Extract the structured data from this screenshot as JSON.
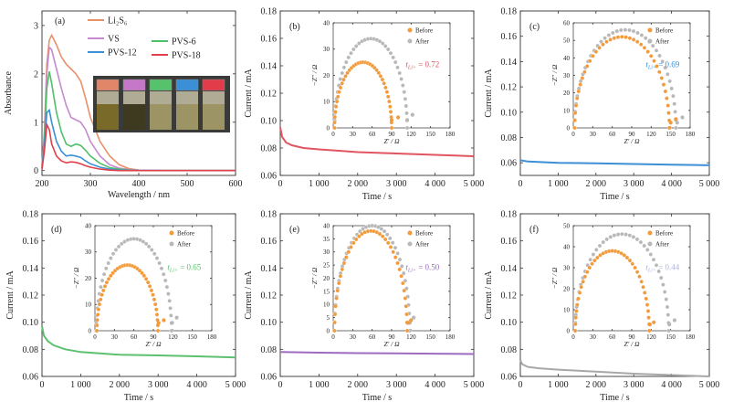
{
  "chart_data": [
    {
      "type": "line",
      "panel_label": "(a)",
      "xlabel": "Wavelength / nm",
      "ylabel": "Absorbance",
      "xlim": [
        200,
        600
      ],
      "ylim": [
        -0.1,
        3.3
      ],
      "xticks": [
        200,
        300,
        400,
        500,
        600
      ],
      "yticks": [
        0,
        1,
        2,
        3
      ],
      "legend": [
        "Li₂S₆",
        "VS",
        "PVS-12",
        "PVS-6",
        "PVS-18"
      ],
      "series": [
        {
          "name": "Li₂S₆",
          "color": "#e8906a",
          "x": [
            200,
            205,
            210,
            215,
            220,
            230,
            240,
            250,
            260,
            270,
            280,
            290,
            300,
            320,
            340,
            360,
            380,
            400,
            450,
            500,
            600
          ],
          "y": [
            0.1,
            0.8,
            2.2,
            2.7,
            2.8,
            2.6,
            2.35,
            2.2,
            2.1,
            2.0,
            1.85,
            1.5,
            1.1,
            0.6,
            0.3,
            0.12,
            0.04,
            0.01,
            0,
            0,
            0
          ]
        },
        {
          "name": "VS",
          "color": "#c68ad0",
          "x": [
            200,
            205,
            210,
            215,
            220,
            230,
            240,
            250,
            260,
            270,
            280,
            290,
            300,
            320,
            340,
            360,
            380,
            400,
            450,
            500,
            600
          ],
          "y": [
            0.1,
            0.7,
            2.0,
            2.55,
            2.5,
            2.1,
            1.7,
            1.35,
            1.1,
            1.05,
            1.0,
            0.85,
            0.6,
            0.3,
            0.12,
            0.05,
            0.02,
            0.01,
            0,
            0,
            0
          ]
        },
        {
          "name": "PVS-6",
          "color": "#4fbf6a",
          "x": [
            200,
            205,
            210,
            215,
            220,
            230,
            240,
            250,
            260,
            270,
            280,
            290,
            300,
            320,
            340,
            360,
            380,
            400,
            450,
            500,
            600
          ],
          "y": [
            0.05,
            0.6,
            1.7,
            2.05,
            1.8,
            1.2,
            0.8,
            0.55,
            0.5,
            0.55,
            0.52,
            0.42,
            0.3,
            0.15,
            0.06,
            0.03,
            0.01,
            0,
            0,
            0,
            0
          ]
        },
        {
          "name": "PVS-12",
          "color": "#3d8fd6",
          "x": [
            200,
            205,
            210,
            215,
            220,
            230,
            240,
            250,
            260,
            270,
            280,
            290,
            300,
            320,
            340,
            360,
            380,
            400,
            450,
            500,
            600
          ],
          "y": [
            0.05,
            0.5,
            1.2,
            1.25,
            1.0,
            0.6,
            0.4,
            0.3,
            0.32,
            0.3,
            0.27,
            0.2,
            0.14,
            0.07,
            0.03,
            0.01,
            0,
            0,
            0,
            0,
            0
          ]
        },
        {
          "name": "PVS-18",
          "color": "#e0404a",
          "x": [
            200,
            205,
            210,
            215,
            220,
            230,
            240,
            250,
            260,
            270,
            280,
            290,
            300,
            320,
            340,
            360,
            380,
            400,
            450,
            500,
            600
          ],
          "y": [
            0.03,
            0.4,
            0.95,
            0.85,
            0.55,
            0.3,
            0.2,
            0.16,
            0.18,
            0.17,
            0.14,
            0.1,
            0.07,
            0.03,
            0.01,
            0,
            0,
            0,
            0,
            0,
            0
          ]
        }
      ],
      "inset_vial_caps": [
        "#e2866a",
        "#c577c8",
        "#56c26c",
        "#3b8fd6",
        "#e23b4a"
      ]
    },
    {
      "type": "line",
      "panel_label": "(b)",
      "xlabel": "Time / s",
      "ylabel": "Current / mA",
      "xlim": [
        0,
        5000
      ],
      "ylim": [
        0.06,
        0.18
      ],
      "xticks": [
        0,
        1000,
        2000,
        3000,
        4000,
        5000
      ],
      "xticklabels": [
        "0",
        "1 000",
        "2 000",
        "3 000",
        "4 000",
        "5 000"
      ],
      "yticks": [
        0.06,
        0.08,
        0.1,
        0.12,
        0.14,
        0.16,
        0.18
      ],
      "series": [
        {
          "color": "#e05560",
          "x": [
            0,
            50,
            150,
            300,
            600,
            1000,
            2000,
            3000,
            4000,
            5000
          ],
          "y": [
            0.095,
            0.088,
            0.084,
            0.082,
            0.08,
            0.079,
            0.077,
            0.076,
            0.075,
            0.074
          ]
        }
      ],
      "inset": {
        "xlabel": "Z' / Ω",
        "ylabel": "−Z'' / Ω",
        "xlim": [
          0,
          180
        ],
        "ylim": [
          0,
          40
        ],
        "xticks": [
          0,
          30,
          60,
          90,
          120,
          150,
          180
        ],
        "yticks": [
          0,
          10,
          20,
          30,
          40
        ],
        "legend": [
          "Before",
          "After"
        ],
        "annotation": "t_Li+ = 0.72",
        "ann_main": "t",
        "ann_sub": "Li+",
        "ann_val": " = 0.72",
        "ann_color": "#e05560",
        "before": {
          "cx": 46,
          "r": 44,
          "h": 25,
          "tail": [
            [
              90,
              3
            ],
            [
              100,
              4
            ]
          ]
        },
        "after": {
          "cx": 58,
          "r": 56,
          "h": 34,
          "tail": [
            [
              114,
              3
            ],
            [
              122,
              5
            ]
          ]
        }
      }
    },
    {
      "type": "line",
      "panel_label": "(c)",
      "xlabel": "Time / s",
      "ylabel": "Current / mA",
      "xlim": [
        0,
        5000
      ],
      "ylim": [
        0.05,
        0.18
      ],
      "xticks": [
        0,
        1000,
        2000,
        3000,
        4000,
        5000
      ],
      "xticklabels": [
        "0",
        "1 000",
        "2 000",
        "3 000",
        "4 000",
        "5 000"
      ],
      "yticks": [
        0.06,
        0.08,
        0.1,
        0.12,
        0.14,
        0.16,
        0.18
      ],
      "series": [
        {
          "color": "#3d8fd6",
          "x": [
            0,
            200,
            1000,
            2000,
            3000,
            4000,
            5000
          ],
          "y": [
            0.062,
            0.061,
            0.06,
            0.0595,
            0.059,
            0.0585,
            0.058
          ]
        }
      ],
      "inset": {
        "xlabel": "Z' / Ω",
        "ylabel": "−Z'' / Ω",
        "xlim": [
          0,
          180
        ],
        "ylim": [
          0,
          60
        ],
        "xticks": [
          0,
          30,
          60,
          90,
          120,
          150,
          180
        ],
        "yticks": [
          0,
          10,
          20,
          30,
          40,
          50,
          60
        ],
        "legend": [
          "Before",
          "After"
        ],
        "annotation": "t_Li+ = 0.69",
        "ann_main": "t",
        "ann_sub": "Li+",
        "ann_val": " = 0.69",
        "ann_color": "#3d8fd6",
        "before": {
          "cx": 75,
          "r": 73,
          "h": 52,
          "tail": [
            [
              150,
              3
            ],
            [
              158,
              5
            ]
          ]
        },
        "after": {
          "cx": 80,
          "r": 78,
          "h": 56,
          "tail": [
            [
              160,
              3
            ],
            [
              168,
              6
            ]
          ]
        }
      }
    },
    {
      "type": "line",
      "panel_label": "(d)",
      "xlabel": "Time / s",
      "ylabel": "Current / mA",
      "xlim": [
        0,
        5000
      ],
      "ylim": [
        0.06,
        0.18
      ],
      "xticks": [
        0,
        1000,
        2000,
        3000,
        4000,
        5000
      ],
      "xticklabels": [
        "0",
        "1 000",
        "2 000",
        "3 000",
        "4 000",
        "5 000"
      ],
      "yticks": [
        0.06,
        0.08,
        0.1,
        0.12,
        0.14,
        0.16,
        0.18
      ],
      "series": [
        {
          "color": "#5cc070",
          "x": [
            0,
            50,
            150,
            300,
            600,
            1000,
            2000,
            3000,
            4000,
            5000
          ],
          "y": [
            0.097,
            0.09,
            0.086,
            0.083,
            0.08,
            0.078,
            0.076,
            0.0755,
            0.0748,
            0.074
          ]
        }
      ],
      "inset": {
        "xlabel": "Z' / Ω",
        "ylabel": "−Z'' / Ω",
        "xlim": [
          0,
          180
        ],
        "ylim": [
          0,
          40
        ],
        "xticks": [
          0,
          30,
          60,
          90,
          120,
          150,
          180
        ],
        "yticks": [
          0,
          10,
          20,
          30,
          40
        ],
        "legend": [
          "Before",
          "After"
        ],
        "annotation": "t_Li+ = 0.65",
        "ann_main": "t",
        "ann_sub": "Li+",
        "ann_val": " = 0.65",
        "ann_color": "#5cc070",
        "before": {
          "cx": 50,
          "r": 47,
          "h": 25,
          "tail": [
            [
              98,
              3
            ],
            [
              106,
              4
            ]
          ]
        },
        "after": {
          "cx": 60,
          "r": 58,
          "h": 35,
          "tail": [
            [
              119,
              3
            ],
            [
              126,
              5
            ]
          ]
        }
      }
    },
    {
      "type": "line",
      "panel_label": "(e)",
      "xlabel": "Time / s",
      "ylabel": "Current / mA",
      "xlim": [
        0,
        5000
      ],
      "ylim": [
        0.06,
        0.18
      ],
      "xticks": [
        0,
        1000,
        2000,
        3000,
        4000,
        5000
      ],
      "xticklabels": [
        "0",
        "1 000",
        "2 000",
        "3 000",
        "4 000",
        "5 000"
      ],
      "yticks": [
        0.06,
        0.08,
        0.1,
        0.12,
        0.14,
        0.16,
        0.18
      ],
      "series": [
        {
          "color": "#9d6cc0",
          "x": [
            0,
            500,
            1000,
            2000,
            3000,
            4000,
            5000
          ],
          "y": [
            0.078,
            0.0778,
            0.0775,
            0.0772,
            0.077,
            0.0768,
            0.0765
          ]
        }
      ],
      "inset": {
        "xlabel": "Z' / Ω",
        "ylabel": "−Z'' / Ω",
        "xlim": [
          0,
          180
        ],
        "ylim": [
          0,
          40
        ],
        "xticks": [
          0,
          30,
          60,
          90,
          120,
          150,
          180
        ],
        "yticks": [
          0,
          5,
          10,
          15,
          20,
          25,
          30,
          35,
          40
        ],
        "legend": [
          "Before",
          "After"
        ],
        "annotation": "t_Li+ = 0.50",
        "ann_main": "t",
        "ann_sub": "Li+",
        "ann_val": " = 0.50",
        "ann_color": "#9d6cc0",
        "before": {
          "cx": 58,
          "r": 56,
          "h": 38,
          "tail": [
            [
              115,
              3
            ],
            [
              120,
              4
            ]
          ]
        },
        "after": {
          "cx": 60,
          "r": 58,
          "h": 40,
          "tail": [
            [
              118,
              3
            ],
            [
              124,
              5
            ]
          ]
        }
      }
    },
    {
      "type": "line",
      "panel_label": "(f)",
      "xlabel": "Time / s",
      "ylabel": "Current / mA",
      "xlim": [
        0,
        5000
      ],
      "ylim": [
        0.06,
        0.18
      ],
      "xticks": [
        0,
        1000,
        2000,
        3000,
        4000,
        5000
      ],
      "xticklabels": [
        "0",
        "1 000",
        "2 000",
        "3 000",
        "4 000",
        "5 000"
      ],
      "yticks": [
        0.06,
        0.08,
        0.1,
        0.12,
        0.14,
        0.16,
        0.18
      ],
      "series": [
        {
          "color": "#a8a8a8",
          "x": [
            0,
            50,
            200,
            500,
            1000,
            2000,
            3000,
            4000,
            5000
          ],
          "y": [
            0.072,
            0.069,
            0.067,
            0.066,
            0.065,
            0.0635,
            0.062,
            0.061,
            0.06
          ]
        }
      ],
      "inset": {
        "xlabel": "Z' / Ω",
        "ylabel": "−Z'' / Ω",
        "xlim": [
          0,
          180
        ],
        "ylim": [
          0,
          50
        ],
        "xticks": [
          0,
          30,
          60,
          90,
          120,
          150,
          180
        ],
        "yticks": [
          0,
          10,
          20,
          30,
          40,
          50
        ],
        "legend": [
          "Before",
          "After"
        ],
        "annotation": "t_Li+ = 0.44",
        "ann_main": "t",
        "ann_sub": "Li+",
        "ann_val": " = 0.44",
        "ann_color": "#b0b6d8",
        "before": {
          "cx": 60,
          "r": 57,
          "h": 38,
          "tail": [
            [
              118,
              3
            ],
            [
              124,
              4
            ]
          ]
        },
        "after": {
          "cx": 75,
          "r": 72,
          "h": 46,
          "tail": [
            [
              148,
              3
            ],
            [
              156,
              5
            ]
          ]
        }
      }
    }
  ],
  "colors": {
    "before": "#f39a3a",
    "after": "#b8b8b8"
  }
}
